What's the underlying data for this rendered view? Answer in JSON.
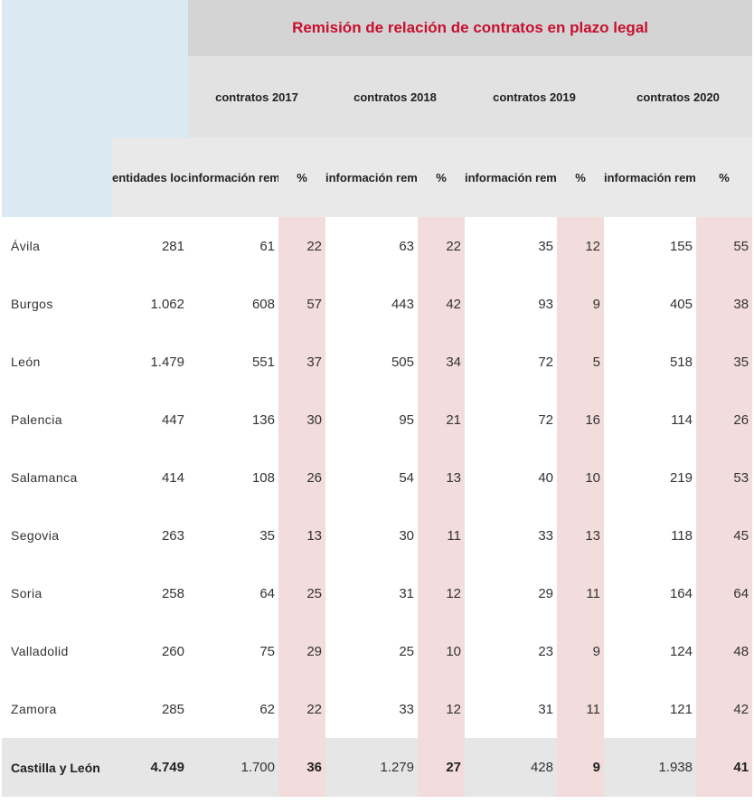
{
  "title": "Remisión de relación de contratos en plazo legal",
  "years": [
    "contratos 2017",
    "contratos 2018",
    "contratos 2019",
    "contratos 2020"
  ],
  "headers": {
    "entidades": "entidades locales",
    "informacion": "información remitida",
    "pct": "%"
  },
  "rows": [
    {
      "name": "Ávila",
      "entidades": "281",
      "v2017": "61",
      "p2017": "22",
      "v2018": "63",
      "p2018": "22",
      "v2019": "35",
      "p2019": "12",
      "v2020": "155",
      "p2020": "55"
    },
    {
      "name": "Burgos",
      "entidades": "1.062",
      "v2017": "608",
      "p2017": "57",
      "v2018": "443",
      "p2018": "42",
      "v2019": "93",
      "p2019": "9",
      "v2020": "405",
      "p2020": "38"
    },
    {
      "name": "León",
      "entidades": "1.479",
      "v2017": "551",
      "p2017": "37",
      "v2018": "505",
      "p2018": "34",
      "v2019": "72",
      "p2019": "5",
      "v2020": "518",
      "p2020": "35"
    },
    {
      "name": "Palencia",
      "entidades": "447",
      "v2017": "136",
      "p2017": "30",
      "v2018": "95",
      "p2018": "21",
      "v2019": "72",
      "p2019": "16",
      "v2020": "114",
      "p2020": "26"
    },
    {
      "name": "Salamanca",
      "entidades": "414",
      "v2017": "108",
      "p2017": "26",
      "v2018": "54",
      "p2018": "13",
      "v2019": "40",
      "p2019": "10",
      "v2020": "219",
      "p2020": "53"
    },
    {
      "name": "Segovia",
      "entidades": "263",
      "v2017": "35",
      "p2017": "13",
      "v2018": "30",
      "p2018": "11",
      "v2019": "33",
      "p2019": "13",
      "v2020": "118",
      "p2020": "45"
    },
    {
      "name": "Soria",
      "entidades": "258",
      "v2017": "64",
      "p2017": "25",
      "v2018": "31",
      "p2018": "12",
      "v2019": "29",
      "p2019": "11",
      "v2020": "164",
      "p2020": "64"
    },
    {
      "name": "Valladolid",
      "entidades": "260",
      "v2017": "75",
      "p2017": "29",
      "v2018": "25",
      "p2018": "10",
      "v2019": "23",
      "p2019": "9",
      "v2020": "124",
      "p2020": "48"
    },
    {
      "name": "Zamora",
      "entidades": "285",
      "v2017": "62",
      "p2017": "22",
      "v2018": "33",
      "p2018": "12",
      "v2019": "31",
      "p2019": "11",
      "v2020": "121",
      "p2020": "42"
    }
  ],
  "total": {
    "name": "Castilla y León",
    "entidades": "4.749",
    "v2017": "1.700",
    "p2017": "36",
    "v2018": "1.279",
    "p2018": "27",
    "v2019": "428",
    "p2019": "9",
    "v2020": "1.938",
    "p2020": "41"
  }
}
